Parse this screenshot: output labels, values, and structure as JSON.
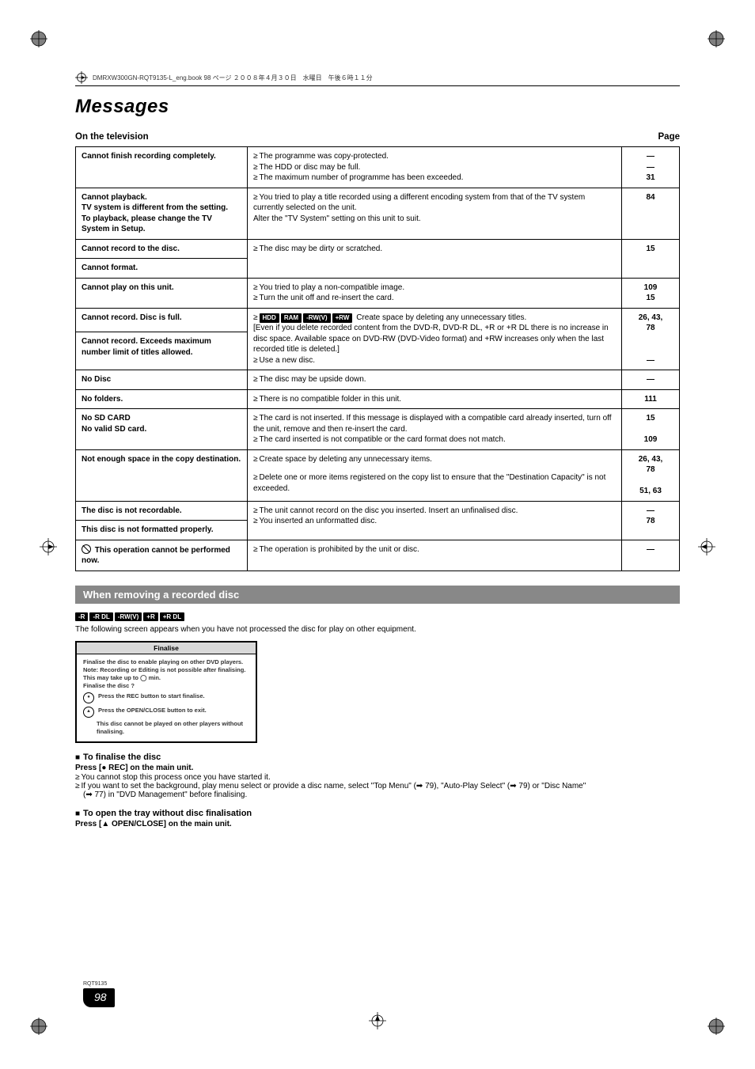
{
  "header_strip": "DMRXW300GN-RQT9135-L_eng.book  98 ページ  ２００８年４月３０日　水曜日　午後６時１１分",
  "page_title": "Messages",
  "subhead_left": "On the television",
  "subhead_right": "Page",
  "rows": [
    {
      "c1": "Cannot finish recording completely.",
      "c2": [
        "The programme was copy-protected.",
        "The HDD or disc may be full.",
        "The maximum number of programme has been exceeded."
      ],
      "c3": "—\n—\n31"
    },
    {
      "c1": "Cannot playback.\nTV system is different from the setting.\nTo playback, please change the TV System in Setup.",
      "c2": [
        "You tried to play a title recorded using a different encoding system from that of the TV system currently selected on the unit.\nAlter the \"TV System\" setting on this unit to suit."
      ],
      "c3": "84"
    },
    {
      "c1": "Cannot record to the disc.",
      "c2": [
        "The disc may be dirty or scratched."
      ],
      "c3": "15",
      "share_below": true
    },
    {
      "c1": "Cannot format.",
      "c2_merge_above": true
    },
    {
      "c1": "Cannot play on this unit.",
      "c2": [
        "You tried to play a non-compatible image.",
        "Turn the unit off and re-insert the card."
      ],
      "c3": "109\n15"
    },
    {
      "c1": "Cannot record. Disc is full.",
      "badges": [
        "HDD",
        "RAM",
        "-RW(V)",
        "+RW"
      ],
      "c2_after_badges": " Create space by deleting any unnecessary titles.",
      "c2_extra": "[Even if you delete recorded content from the DVD-R, DVD-R DL, +R or +R DL there is no increase in disc space. Available space on DVD-RW (DVD-Video format) and +RW increases only when the last recorded title is deleted.]",
      "c2": [
        "Use a new disc."
      ],
      "c3": "26, 43,\n78\n\n\n—",
      "share_below2": true
    },
    {
      "c1": "Cannot record. Exceeds maximum number limit of titles allowed.",
      "c2_merge_above": true
    },
    {
      "c1": "No Disc",
      "c2": [
        "The disc may be upside down."
      ],
      "c3": "—"
    },
    {
      "c1": "No folders.",
      "c2": [
        "There is no compatible folder in this unit."
      ],
      "c3": "111"
    },
    {
      "c1": "No SD CARD\nNo valid SD card.",
      "c2": [
        "The card is not inserted. If this message is displayed with a compatible card already inserted, turn off the unit, remove and then re-insert the card.",
        "The card inserted is not compatible or the card format does not match."
      ],
      "c3": "15\n\n109"
    },
    {
      "c1": "Not enough space in the copy destination.",
      "c2": [
        "Create space by deleting any unnecessary items.",
        "",
        "Delete one or more items registered on the copy list to ensure that the \"Destination Capacity\" is not exceeded."
      ],
      "c3": "26, 43,\n78\n\n51, 63"
    },
    {
      "c1": "The disc is not recordable.",
      "c2": [
        "The unit cannot record on the disc you inserted. Insert an unfinalised disc.",
        "You inserted an unformatted disc."
      ],
      "c3": "—\n78",
      "share_below": true
    },
    {
      "c1": "This disc is not formatted properly.",
      "c2_merge_above": true
    },
    {
      "c1_prohibit": true,
      "c1": " This operation cannot be performed now.",
      "c2": [
        "The operation is prohibited by the unit or disc."
      ],
      "c3": "—"
    }
  ],
  "section_bar": "When removing a recorded disc",
  "disc_badges": [
    "-R",
    "-R DL",
    "-RW(V)",
    "+R",
    "+R DL"
  ],
  "after_badges_text": "The following screen appears when you have not processed the disc for play on other equipment.",
  "finalise_box": {
    "title": "Finalise",
    "line1": "Finalise the disc to enable playing on other DVD players.",
    "line2": "Note: Recording or Editing is not possible after finalising. This may take up to ◯ min.",
    "line3": "Finalise the disc ?",
    "btn1": "Press the REC button to start finalise.",
    "btn2": "Press the OPEN/CLOSE button to exit.",
    "line4": "This disc cannot be played on other players without finalising."
  },
  "sub1_title": "To finalise the disc",
  "sub1_press": "Press [● REC] on the main unit.",
  "sub1_b1": "You cannot stop this process once you have started it.",
  "sub1_b2": "If you want to set the background, play menu select or provide a disc name, select \"Top Menu\" (➡ 79), \"Auto-Play Select\" (➡ 79) or \"Disc Name\"",
  "sub1_b2_cont": "(➡ 77) in \"DVD Management\" before finalising.",
  "sub2_title": "To open the tray without disc finalisation",
  "sub2_press": "Press [▲ OPEN/CLOSE] on the main unit.",
  "footer_code": "RQT9135",
  "page_number": "98"
}
